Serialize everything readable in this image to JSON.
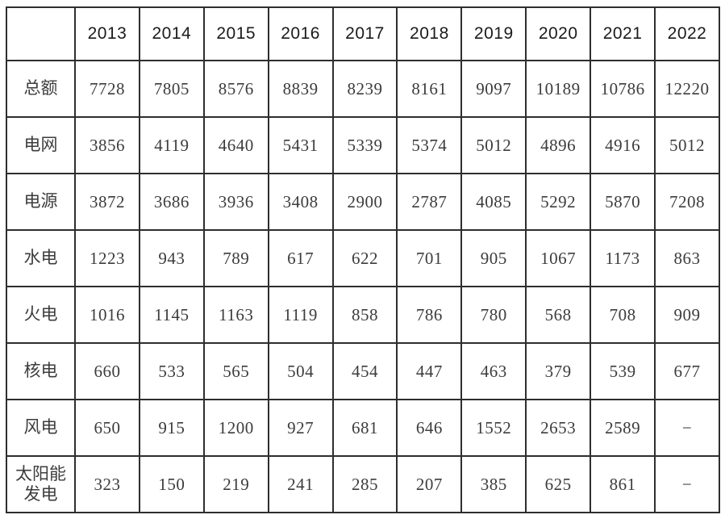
{
  "table": {
    "corner": "",
    "columns": [
      "2013",
      "2014",
      "2015",
      "2016",
      "2017",
      "2018",
      "2019",
      "2020",
      "2021",
      "2022"
    ],
    "rows": [
      {
        "label": "总额",
        "values": [
          "7728",
          "7805",
          "8576",
          "8839",
          "8239",
          "8161",
          "9097",
          "10189",
          "10786",
          "12220"
        ]
      },
      {
        "label": "电网",
        "values": [
          "3856",
          "4119",
          "4640",
          "5431",
          "5339",
          "5374",
          "5012",
          "4896",
          "4916",
          "5012"
        ]
      },
      {
        "label": "电源",
        "values": [
          "3872",
          "3686",
          "3936",
          "3408",
          "2900",
          "2787",
          "4085",
          "5292",
          "5870",
          "7208"
        ]
      },
      {
        "label": "水电",
        "values": [
          "1223",
          "943",
          "789",
          "617",
          "622",
          "701",
          "905",
          "1067",
          "1173",
          "863"
        ]
      },
      {
        "label": "火电",
        "values": [
          "1016",
          "1145",
          "1163",
          "1119",
          "858",
          "786",
          "780",
          "568",
          "708",
          "909"
        ]
      },
      {
        "label": "核电",
        "values": [
          "660",
          "533",
          "565",
          "504",
          "454",
          "447",
          "463",
          "379",
          "539",
          "677"
        ]
      },
      {
        "label": "风电",
        "values": [
          "650",
          "915",
          "1200",
          "927",
          "681",
          "646",
          "1552",
          "2653",
          "2589",
          "−"
        ]
      },
      {
        "label": "太阳能发电",
        "values": [
          "323",
          "150",
          "219",
          "241",
          "285",
          "207",
          "385",
          "625",
          "861",
          "−"
        ]
      }
    ]
  },
  "chart_data": {
    "type": "table",
    "title": "",
    "categories": [
      "2013",
      "2014",
      "2015",
      "2016",
      "2017",
      "2018",
      "2019",
      "2020",
      "2021",
      "2022"
    ],
    "series": [
      {
        "name": "总额",
        "values": [
          7728,
          7805,
          8576,
          8839,
          8239,
          8161,
          9097,
          10189,
          10786,
          12220
        ]
      },
      {
        "name": "电网",
        "values": [
          3856,
          4119,
          4640,
          5431,
          5339,
          5374,
          5012,
          4896,
          4916,
          5012
        ]
      },
      {
        "name": "电源",
        "values": [
          3872,
          3686,
          3936,
          3408,
          2900,
          2787,
          4085,
          5292,
          5870,
          7208
        ]
      },
      {
        "name": "水电",
        "values": [
          1223,
          943,
          789,
          617,
          622,
          701,
          905,
          1067,
          1173,
          863
        ]
      },
      {
        "name": "火电",
        "values": [
          1016,
          1145,
          1163,
          1119,
          858,
          786,
          780,
          568,
          708,
          909
        ]
      },
      {
        "name": "核电",
        "values": [
          660,
          533,
          565,
          504,
          454,
          447,
          463,
          379,
          539,
          677
        ]
      },
      {
        "name": "风电",
        "values": [
          650,
          915,
          1200,
          927,
          681,
          646,
          1552,
          2653,
          2589,
          null
        ]
      },
      {
        "name": "太阳能发电",
        "values": [
          323,
          150,
          219,
          241,
          285,
          207,
          385,
          625,
          861,
          null
        ]
      }
    ],
    "missing_value_marker": "−"
  },
  "colors": {
    "background": "#ffffff",
    "border": "#2e2e2e",
    "header_text": "#1b1b1b",
    "body_text": "#3c3c3c"
  }
}
